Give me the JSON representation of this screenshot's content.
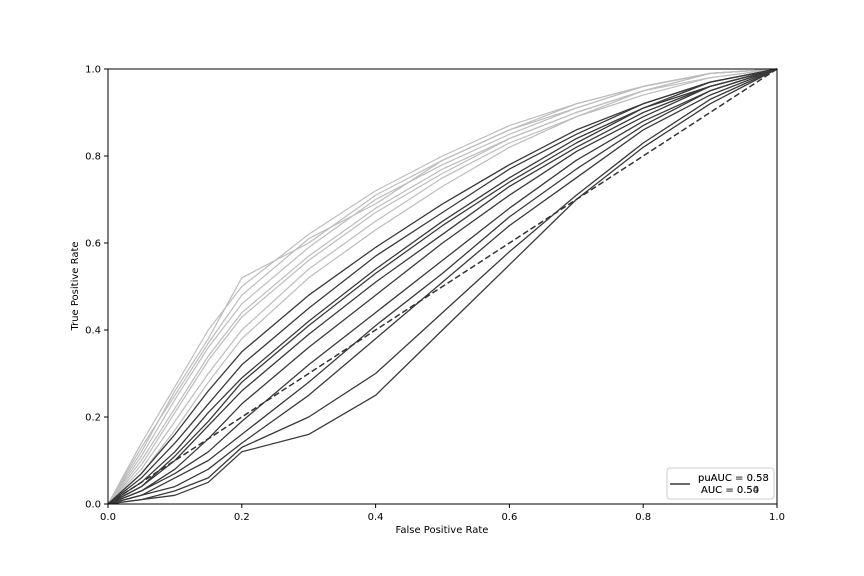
{
  "chart_data": {
    "type": "line",
    "title": "",
    "xlabel": "False Positive Rate",
    "ylabel": "True Positive Rate",
    "xlim": [
      0.0,
      1.0
    ],
    "ylim": [
      0.0,
      1.0
    ],
    "xticks": [
      "0.0",
      "0.2",
      "0.4",
      "0.6",
      "0.8",
      "1.0"
    ],
    "yticks": [
      "0.0",
      "0.2",
      "0.4",
      "0.6",
      "0.8",
      "1.0"
    ],
    "grid": false,
    "legend_position": "lower-right",
    "legend": {
      "entries": [
        "puAUC = 0.58",
        "AUC = 0.54"
      ],
      "overlay": [
        "puAUC = 0.53",
        "AUC = 0.50"
      ]
    },
    "colors": {
      "auc_curves": "#3a3a3a",
      "puauc_curves": "#bdbdbd",
      "chance": "#333333"
    },
    "chance_line": {
      "x": [
        0,
        1
      ],
      "y": [
        0,
        1
      ],
      "style": "dashed"
    },
    "series": [
      {
        "group": "puAUC",
        "x": [
          0,
          0.05,
          0.1,
          0.15,
          0.2,
          0.3,
          0.4,
          0.5,
          0.6,
          0.7,
          0.8,
          0.9,
          1.0
        ],
        "y": [
          0,
          0.14,
          0.27,
          0.4,
          0.5,
          0.62,
          0.72,
          0.8,
          0.87,
          0.92,
          0.96,
          0.99,
          1.0
        ]
      },
      {
        "group": "puAUC",
        "x": [
          0,
          0.05,
          0.1,
          0.15,
          0.2,
          0.3,
          0.4,
          0.5,
          0.6,
          0.7,
          0.8,
          0.9,
          1.0
        ],
        "y": [
          0,
          0.11,
          0.24,
          0.36,
          0.46,
          0.59,
          0.7,
          0.78,
          0.85,
          0.91,
          0.96,
          0.99,
          1.0
        ]
      },
      {
        "group": "puAUC",
        "x": [
          0,
          0.05,
          0.1,
          0.15,
          0.2,
          0.3,
          0.4,
          0.5,
          0.6,
          0.7,
          0.8,
          0.9,
          1.0
        ],
        "y": [
          0,
          0.09,
          0.21,
          0.33,
          0.43,
          0.56,
          0.67,
          0.76,
          0.84,
          0.9,
          0.95,
          0.99,
          1.0
        ]
      },
      {
        "group": "puAUC",
        "x": [
          0,
          0.05,
          0.1,
          0.15,
          0.2,
          0.3,
          0.4,
          0.5,
          0.6,
          0.7,
          0.8,
          0.9,
          1.0
        ],
        "y": [
          0,
          0.08,
          0.19,
          0.3,
          0.4,
          0.54,
          0.65,
          0.75,
          0.83,
          0.89,
          0.95,
          0.98,
          1.0
        ]
      },
      {
        "group": "puAUC",
        "x": [
          0,
          0.05,
          0.1,
          0.15,
          0.2,
          0.3,
          0.4,
          0.5,
          0.6,
          0.7,
          0.8,
          0.9,
          1.0
        ],
        "y": [
          0,
          0.12,
          0.26,
          0.38,
          0.52,
          0.6,
          0.71,
          0.79,
          0.86,
          0.91,
          0.96,
          0.99,
          1.0
        ]
      },
      {
        "group": "puAUC",
        "x": [
          0,
          0.05,
          0.1,
          0.15,
          0.2,
          0.3,
          0.4,
          0.5,
          0.6,
          0.7,
          0.8,
          0.9,
          1.0
        ],
        "y": [
          0,
          0.07,
          0.17,
          0.28,
          0.38,
          0.52,
          0.63,
          0.73,
          0.82,
          0.89,
          0.94,
          0.98,
          1.0
        ]
      },
      {
        "group": "puAUC",
        "x": [
          0,
          0.05,
          0.1,
          0.15,
          0.2,
          0.3,
          0.4,
          0.5,
          0.6,
          0.7,
          0.8,
          0.9,
          1.0
        ],
        "y": [
          0,
          0.1,
          0.22,
          0.34,
          0.44,
          0.57,
          0.68,
          0.77,
          0.84,
          0.9,
          0.95,
          0.99,
          1.0
        ]
      },
      {
        "group": "puAUC",
        "x": [
          0,
          0.05,
          0.1,
          0.15,
          0.2,
          0.3,
          0.4,
          0.5,
          0.6,
          0.7,
          0.8,
          0.9,
          1.0
        ],
        "y": [
          0,
          0.13,
          0.25,
          0.37,
          0.48,
          0.61,
          0.69,
          0.79,
          0.86,
          0.92,
          0.96,
          0.99,
          1.0
        ]
      },
      {
        "group": "AUC",
        "x": [
          0,
          0.05,
          0.1,
          0.15,
          0.2,
          0.3,
          0.4,
          0.5,
          0.6,
          0.7,
          0.8,
          0.9,
          1.0
        ],
        "y": [
          0,
          0.07,
          0.16,
          0.26,
          0.35,
          0.48,
          0.59,
          0.69,
          0.78,
          0.86,
          0.92,
          0.97,
          1.0
        ]
      },
      {
        "group": "AUC",
        "x": [
          0,
          0.05,
          0.1,
          0.15,
          0.2,
          0.3,
          0.4,
          0.5,
          0.6,
          0.7,
          0.8,
          0.9,
          1.0
        ],
        "y": [
          0,
          0.06,
          0.14,
          0.23,
          0.32,
          0.45,
          0.57,
          0.67,
          0.77,
          0.85,
          0.92,
          0.97,
          1.0
        ]
      },
      {
        "group": "AUC",
        "x": [
          0,
          0.05,
          0.1,
          0.15,
          0.2,
          0.3,
          0.4,
          0.5,
          0.6,
          0.7,
          0.8,
          0.9,
          1.0
        ],
        "y": [
          0,
          0.05,
          0.12,
          0.21,
          0.29,
          0.42,
          0.54,
          0.65,
          0.75,
          0.84,
          0.91,
          0.97,
          1.0
        ]
      },
      {
        "group": "AUC",
        "x": [
          0,
          0.05,
          0.1,
          0.15,
          0.2,
          0.3,
          0.4,
          0.5,
          0.6,
          0.7,
          0.8,
          0.9,
          1.0
        ],
        "y": [
          0,
          0.04,
          0.1,
          0.18,
          0.26,
          0.39,
          0.51,
          0.62,
          0.73,
          0.82,
          0.9,
          0.96,
          1.0
        ]
      },
      {
        "group": "AUC",
        "x": [
          0,
          0.05,
          0.1,
          0.15,
          0.2,
          0.3,
          0.4,
          0.5,
          0.6,
          0.7,
          0.8,
          0.9,
          1.0
        ],
        "y": [
          0,
          0.03,
          0.08,
          0.15,
          0.23,
          0.36,
          0.48,
          0.6,
          0.71,
          0.81,
          0.89,
          0.96,
          1.0
        ]
      },
      {
        "group": "AUC",
        "x": [
          0,
          0.05,
          0.1,
          0.15,
          0.2,
          0.3,
          0.4,
          0.5,
          0.6,
          0.7,
          0.8,
          0.9,
          1.0
        ],
        "y": [
          0,
          0.03,
          0.07,
          0.12,
          0.19,
          0.32,
          0.44,
          0.56,
          0.68,
          0.79,
          0.88,
          0.95,
          1.0
        ]
      },
      {
        "group": "AUC",
        "x": [
          0,
          0.05,
          0.1,
          0.15,
          0.2,
          0.3,
          0.4,
          0.5,
          0.6,
          0.7,
          0.8,
          0.9,
          1.0
        ],
        "y": [
          0,
          0.02,
          0.06,
          0.1,
          0.16,
          0.28,
          0.41,
          0.53,
          0.66,
          0.77,
          0.87,
          0.95,
          1.0
        ]
      },
      {
        "group": "AUC",
        "x": [
          0,
          0.05,
          0.1,
          0.15,
          0.2,
          0.3,
          0.4,
          0.5,
          0.6,
          0.7,
          0.8,
          0.9,
          1.0
        ],
        "y": [
          0,
          0.02,
          0.04,
          0.08,
          0.14,
          0.25,
          0.38,
          0.51,
          0.64,
          0.75,
          0.86,
          0.94,
          1.0
        ]
      },
      {
        "group": "AUC",
        "x": [
          0,
          0.05,
          0.1,
          0.15,
          0.2,
          0.3,
          0.4,
          0.5,
          0.6,
          0.7,
          0.8,
          0.9,
          1.0
        ],
        "y": [
          0,
          0.01,
          0.03,
          0.06,
          0.13,
          0.2,
          0.3,
          0.44,
          0.58,
          0.71,
          0.83,
          0.93,
          1.0
        ]
      },
      {
        "group": "AUC",
        "x": [
          0,
          0.05,
          0.1,
          0.15,
          0.2,
          0.3,
          0.4,
          0.5,
          0.6,
          0.7,
          0.8,
          0.9,
          1.0
        ],
        "y": [
          0,
          0.01,
          0.02,
          0.05,
          0.12,
          0.16,
          0.25,
          0.4,
          0.55,
          0.7,
          0.82,
          0.92,
          1.0
        ]
      },
      {
        "group": "AUC",
        "x": [
          0,
          0.05,
          0.1,
          0.15,
          0.2,
          0.3,
          0.4,
          0.5,
          0.6,
          0.7,
          0.8,
          0.9,
          1.0
        ],
        "y": [
          0,
          0.04,
          0.11,
          0.19,
          0.28,
          0.41,
          0.53,
          0.64,
          0.74,
          0.83,
          0.91,
          0.96,
          1.0
        ]
      }
    ]
  }
}
